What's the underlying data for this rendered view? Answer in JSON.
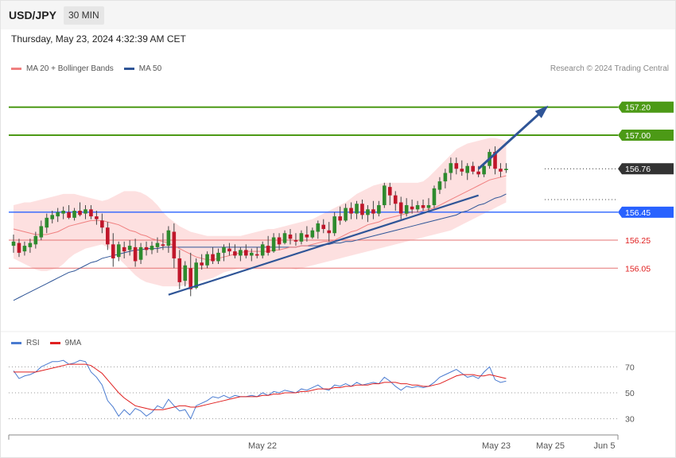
{
  "header": {
    "symbol": "USD/JPY",
    "timeframe": "30 MIN"
  },
  "datetime": "Thursday, May 23, 2024 4:32:39 AM CET",
  "legend": [
    {
      "label": "MA 20 + Bollinger Bands",
      "color": "#f08080"
    },
    {
      "label": "MA 50",
      "color": "#2f5597"
    }
  ],
  "credit": "Research © 2024 Trading Central",
  "rsi_legend": [
    {
      "label": "RSI",
      "color": "#4a7bd0"
    },
    {
      "label": "9MA",
      "color": "#e02020"
    }
  ],
  "colors": {
    "up": "#2e8b2e",
    "down": "#c0162a",
    "band": "#fde0e0",
    "trend": "#2f5597",
    "resistance": "#4c9a16",
    "support_blue": "#2962ff",
    "support_red": "#e57373",
    "last": "#333333"
  },
  "chart_data": [
    {
      "type": "candlestick",
      "title": "USD/JPY",
      "timeframe": "30 MIN",
      "x_labels": [
        "May 22",
        "May 23",
        "May 25",
        "Jun 5"
      ],
      "ylim": [
        155.62,
        157.42
      ],
      "levels": [
        {
          "label": "157.20",
          "value": 157.2,
          "kind": "resistance"
        },
        {
          "label": "157.00",
          "value": 157.0,
          "kind": "resistance"
        },
        {
          "label": "156.76",
          "value": 156.76,
          "kind": "last"
        },
        {
          "label": "156.45",
          "value": 156.45,
          "kind": "support"
        },
        {
          "label": "156.25",
          "value": 156.25,
          "kind": "minor"
        },
        {
          "label": "156.05",
          "value": 156.05,
          "kind": "minor"
        }
      ],
      "candles": [
        [
          156.21,
          156.29,
          156.16,
          156.24
        ],
        [
          156.23,
          156.26,
          156.13,
          156.16
        ],
        [
          156.17,
          156.24,
          156.14,
          156.21
        ],
        [
          156.2,
          156.26,
          156.16,
          156.23
        ],
        [
          156.22,
          156.31,
          156.19,
          156.28
        ],
        [
          156.27,
          156.39,
          156.25,
          156.35
        ],
        [
          156.34,
          156.44,
          156.3,
          156.41
        ],
        [
          156.4,
          156.46,
          156.37,
          156.43
        ],
        [
          156.42,
          156.48,
          156.38,
          156.45
        ],
        [
          156.44,
          156.49,
          156.4,
          156.46
        ],
        [
          156.45,
          156.5,
          156.4,
          156.41
        ],
        [
          156.41,
          156.48,
          156.39,
          156.46
        ],
        [
          156.46,
          156.52,
          156.42,
          156.43
        ],
        [
          156.44,
          156.5,
          156.4,
          156.47
        ],
        [
          156.47,
          156.5,
          156.4,
          156.42
        ],
        [
          156.42,
          156.46,
          156.36,
          156.4
        ],
        [
          156.39,
          156.44,
          156.3,
          156.34
        ],
        [
          156.34,
          156.38,
          156.18,
          156.22
        ],
        [
          156.22,
          156.3,
          156.06,
          156.12
        ],
        [
          156.13,
          156.24,
          156.1,
          156.22
        ],
        [
          156.2,
          156.24,
          156.12,
          156.17
        ],
        [
          156.18,
          156.25,
          156.14,
          156.21
        ],
        [
          156.2,
          156.26,
          156.06,
          156.1
        ],
        [
          156.11,
          156.23,
          156.08,
          156.2
        ],
        [
          156.2,
          156.24,
          156.14,
          156.18
        ],
        [
          156.18,
          156.24,
          156.15,
          156.21
        ],
        [
          156.2,
          156.27,
          156.16,
          156.23
        ],
        [
          156.22,
          156.3,
          156.18,
          156.21
        ],
        [
          156.21,
          156.35,
          156.16,
          156.32
        ],
        [
          156.31,
          156.37,
          156.05,
          156.12
        ],
        [
          156.12,
          156.18,
          155.9,
          155.95
        ],
        [
          155.96,
          156.1,
          155.92,
          156.07
        ],
        [
          156.05,
          156.16,
          155.85,
          155.9
        ],
        [
          155.91,
          156.12,
          155.9,
          156.09
        ],
        [
          156.09,
          156.15,
          156.04,
          156.07
        ],
        [
          156.07,
          156.17,
          156.05,
          156.15
        ],
        [
          156.15,
          156.2,
          156.08,
          156.1
        ],
        [
          156.1,
          156.19,
          156.08,
          156.16
        ],
        [
          156.16,
          156.22,
          156.1,
          156.2
        ],
        [
          156.19,
          156.23,
          156.14,
          156.17
        ],
        [
          156.17,
          156.22,
          156.12,
          156.14
        ],
        [
          156.14,
          156.2,
          156.1,
          156.18
        ],
        [
          156.18,
          156.22,
          156.12,
          156.14
        ],
        [
          156.14,
          156.19,
          156.1,
          156.16
        ],
        [
          156.15,
          156.2,
          156.12,
          156.14
        ],
        [
          156.14,
          156.24,
          156.12,
          156.22
        ],
        [
          156.21,
          156.28,
          156.14,
          156.16
        ],
        [
          156.17,
          156.3,
          156.16,
          156.27
        ],
        [
          156.27,
          156.3,
          156.18,
          156.22
        ],
        [
          156.23,
          156.32,
          156.22,
          156.3
        ],
        [
          156.29,
          156.33,
          156.22,
          156.26
        ],
        [
          156.25,
          156.3,
          156.21,
          156.24
        ],
        [
          156.24,
          156.32,
          156.22,
          156.3
        ],
        [
          156.29,
          156.35,
          156.24,
          156.27
        ],
        [
          156.27,
          156.34,
          156.26,
          156.32
        ],
        [
          156.31,
          156.39,
          156.26,
          156.37
        ],
        [
          156.36,
          156.4,
          156.3,
          156.33
        ],
        [
          156.32,
          156.38,
          156.24,
          156.3
        ],
        [
          156.3,
          156.45,
          156.28,
          156.42
        ],
        [
          156.42,
          156.49,
          156.36,
          156.39
        ],
        [
          156.39,
          156.51,
          156.38,
          156.48
        ],
        [
          156.48,
          156.52,
          156.4,
          156.44
        ],
        [
          156.44,
          156.53,
          156.4,
          156.51
        ],
        [
          156.51,
          156.54,
          156.4,
          156.43
        ],
        [
          156.43,
          156.5,
          156.38,
          156.47
        ],
        [
          156.47,
          156.53,
          156.4,
          156.44
        ],
        [
          156.44,
          156.53,
          156.42,
          156.5
        ],
        [
          156.5,
          156.66,
          156.48,
          156.64
        ],
        [
          156.63,
          156.66,
          156.5,
          156.57
        ],
        [
          156.57,
          156.6,
          156.46,
          156.51
        ],
        [
          156.52,
          156.56,
          156.4,
          156.44
        ],
        [
          156.44,
          156.55,
          156.42,
          156.5
        ],
        [
          156.49,
          156.54,
          156.44,
          156.47
        ],
        [
          156.47,
          156.53,
          156.45,
          156.5
        ],
        [
          156.5,
          156.54,
          156.46,
          156.48
        ],
        [
          156.48,
          156.55,
          156.45,
          156.5
        ],
        [
          156.5,
          156.64,
          156.48,
          156.62
        ],
        [
          156.61,
          156.7,
          156.58,
          156.67
        ],
        [
          156.67,
          156.76,
          156.62,
          156.73
        ],
        [
          156.73,
          156.84,
          156.68,
          156.8
        ],
        [
          156.8,
          156.84,
          156.72,
          156.76
        ],
        [
          156.76,
          156.82,
          156.71,
          156.74
        ],
        [
          156.73,
          156.8,
          156.68,
          156.78
        ],
        [
          156.78,
          156.81,
          156.72,
          156.74
        ],
        [
          156.74,
          156.78,
          156.7,
          156.72
        ],
        [
          156.72,
          156.8,
          156.7,
          156.78
        ],
        [
          156.78,
          156.9,
          156.76,
          156.88
        ],
        [
          156.88,
          156.92,
          156.72,
          156.76
        ],
        [
          156.76,
          156.8,
          156.7,
          156.74
        ],
        [
          156.75,
          156.8,
          156.73,
          156.76
        ]
      ],
      "ma20": [
        156.33,
        156.32,
        156.31,
        156.3,
        156.29,
        156.29,
        156.29,
        156.3,
        156.31,
        156.33,
        156.35,
        156.36,
        156.37,
        156.38,
        156.39,
        156.39,
        156.39,
        156.38,
        156.37,
        156.36,
        156.34,
        156.32,
        156.31,
        156.29,
        156.28,
        156.26,
        156.25,
        156.24,
        156.23,
        156.21,
        156.19,
        156.17,
        156.15,
        156.13,
        156.12,
        156.11,
        156.11,
        156.12,
        156.13,
        156.14,
        156.15,
        156.16,
        156.17,
        156.17,
        156.17,
        156.17,
        156.17,
        156.18,
        156.18,
        156.19,
        156.2,
        156.2,
        156.21,
        156.21,
        156.22,
        156.23,
        156.24,
        156.24,
        156.25,
        156.27,
        156.29,
        156.31,
        156.32,
        156.34,
        156.36,
        156.37,
        156.38,
        156.4,
        156.41,
        156.42,
        156.43,
        156.44,
        156.45,
        156.45,
        156.46,
        156.47,
        156.48,
        156.5,
        156.52,
        156.54,
        156.56,
        156.58,
        156.6,
        156.62,
        156.64,
        156.66,
        156.68,
        156.69,
        156.7,
        156.71
      ],
      "ma50": [
        155.82,
        155.84,
        155.86,
        155.88,
        155.9,
        155.92,
        155.94,
        155.96,
        155.98,
        156.0,
        156.02,
        156.03,
        156.05,
        156.07,
        156.09,
        156.1,
        156.12,
        156.13,
        156.14,
        156.15,
        156.16,
        156.17,
        156.18,
        156.18,
        156.19,
        156.19,
        156.19,
        156.2,
        156.2,
        156.2,
        156.2,
        156.2,
        156.2,
        156.2,
        156.2,
        156.2,
        156.2,
        156.2,
        156.2,
        156.2,
        156.2,
        156.2,
        156.2,
        156.2,
        156.2,
        156.2,
        156.2,
        156.2,
        156.2,
        156.2,
        156.2,
        156.2,
        156.21,
        156.21,
        156.21,
        156.21,
        156.22,
        156.22,
        156.23,
        156.23,
        156.24,
        156.24,
        156.25,
        156.26,
        156.27,
        156.28,
        156.29,
        156.3,
        156.31,
        156.32,
        156.33,
        156.34,
        156.35,
        156.36,
        156.37,
        156.38,
        156.39,
        156.4,
        156.41,
        156.42,
        156.43,
        156.45,
        156.46,
        156.48,
        156.5,
        156.51,
        156.53,
        156.55,
        156.56,
        156.58
      ],
      "bb_upper": [
        156.5,
        156.51,
        156.52,
        156.52,
        156.53,
        156.54,
        156.55,
        156.56,
        156.57,
        156.58,
        156.58,
        156.58,
        156.57,
        156.56,
        156.55,
        156.54,
        156.53,
        156.54,
        156.56,
        156.58,
        156.6,
        156.6,
        156.6,
        156.59,
        156.57,
        156.54,
        156.5,
        156.45,
        156.41,
        156.38,
        156.35,
        156.33,
        156.31,
        156.3,
        156.29,
        156.28,
        156.28,
        156.28,
        156.28,
        156.28,
        156.28,
        156.28,
        156.29,
        156.3,
        156.31,
        156.32,
        156.33,
        156.33,
        156.34,
        156.35,
        156.36,
        156.37,
        156.38,
        156.39,
        156.4,
        156.42,
        156.44,
        156.46,
        156.48,
        156.5,
        156.52,
        156.55,
        156.58,
        156.6,
        156.62,
        156.64,
        156.65,
        156.66,
        156.66,
        156.66,
        156.66,
        156.66,
        156.66,
        156.66,
        156.67,
        156.7,
        156.74,
        156.78,
        156.82,
        156.86,
        156.9,
        156.92,
        156.94,
        156.95,
        156.96,
        156.97,
        156.98,
        156.98,
        156.97,
        156.96
      ],
      "bb_lower": [
        156.12,
        156.1,
        156.08,
        156.06,
        156.04,
        156.03,
        156.03,
        156.04,
        156.05,
        156.08,
        156.12,
        156.15,
        156.17,
        156.19,
        156.2,
        156.21,
        156.22,
        156.2,
        156.16,
        156.12,
        156.08,
        156.04,
        156.0,
        155.97,
        155.95,
        155.94,
        155.93,
        155.92,
        155.92,
        155.92,
        155.92,
        155.93,
        155.94,
        155.95,
        155.96,
        155.97,
        155.98,
        156.0,
        156.02,
        156.03,
        156.04,
        156.05,
        156.05,
        156.05,
        156.05,
        156.05,
        156.05,
        156.05,
        156.05,
        156.05,
        156.05,
        156.04,
        156.05,
        156.06,
        156.07,
        156.08,
        156.09,
        156.1,
        156.11,
        156.12,
        156.13,
        156.14,
        156.15,
        156.16,
        156.17,
        156.18,
        156.19,
        156.2,
        156.21,
        156.22,
        156.23,
        156.24,
        156.25,
        156.26,
        156.27,
        156.28,
        156.29,
        156.3,
        156.31,
        156.32,
        156.34,
        156.36,
        156.38,
        156.4,
        156.42,
        156.44,
        156.46,
        156.48,
        156.5,
        156.52
      ],
      "annotations": {
        "trendline": [
          [
            28,
            155.86
          ],
          [
            84,
            156.57
          ]
        ],
        "arrow": [
          [
            84,
            156.76
          ],
          [
            96,
            157.2
          ]
        ]
      }
    },
    {
      "type": "line",
      "title": "RSI",
      "ylim": [
        20,
        80
      ],
      "yticks": [
        70,
        50,
        30
      ],
      "series": [
        {
          "name": "RSI",
          "values": [
            67,
            61,
            63,
            64,
            66,
            70,
            72,
            74,
            74,
            75,
            72,
            73,
            75,
            74,
            66,
            62,
            56,
            44,
            39,
            32,
            37,
            33,
            38,
            36,
            32,
            35,
            40,
            38,
            45,
            40,
            36,
            37,
            30,
            40,
            42,
            44,
            47,
            46,
            48,
            46,
            48,
            47,
            47,
            48,
            47,
            50,
            48,
            51,
            50,
            52,
            51,
            50,
            53,
            52,
            54,
            56,
            53,
            52,
            56,
            55,
            57,
            55,
            58,
            56,
            57,
            58,
            57,
            62,
            59,
            55,
            52,
            55,
            54,
            55,
            54,
            55,
            58,
            62,
            64,
            66,
            68,
            65,
            62,
            63,
            61,
            66,
            70,
            60,
            58,
            59
          ]
        },
        {
          "name": "9MA",
          "values": [
            66,
            66,
            66,
            66,
            66,
            67,
            68,
            69,
            70,
            71,
            72,
            72,
            72,
            72,
            71,
            68,
            65,
            60,
            55,
            50,
            46,
            43,
            40,
            39,
            38,
            37,
            37,
            37,
            38,
            39,
            40,
            40,
            39,
            39,
            40,
            41,
            42,
            43,
            44,
            45,
            46,
            47,
            47,
            47,
            47,
            48,
            48,
            49,
            49,
            50,
            50,
            50,
            51,
            51,
            52,
            53,
            53,
            53,
            54,
            54,
            55,
            55,
            56,
            56,
            56,
            57,
            57,
            58,
            58,
            58,
            57,
            57,
            56,
            56,
            55,
            55,
            56,
            57,
            59,
            61,
            63,
            64,
            64,
            64,
            63,
            63,
            64,
            63,
            62,
            61
          ]
        }
      ]
    }
  ]
}
